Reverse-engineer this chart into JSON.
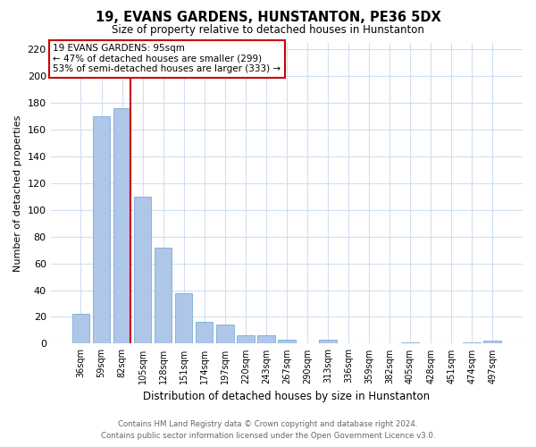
{
  "title": "19, EVANS GARDENS, HUNSTANTON, PE36 5DX",
  "subtitle": "Size of property relative to detached houses in Hunstanton",
  "xlabel": "Distribution of detached houses by size in Hunstanton",
  "ylabel": "Number of detached properties",
  "bar_labels": [
    "36sqm",
    "59sqm",
    "82sqm",
    "105sqm",
    "128sqm",
    "151sqm",
    "174sqm",
    "197sqm",
    "220sqm",
    "243sqm",
    "267sqm",
    "290sqm",
    "313sqm",
    "336sqm",
    "359sqm",
    "382sqm",
    "405sqm",
    "428sqm",
    "451sqm",
    "474sqm",
    "497sqm"
  ],
  "bar_values": [
    22,
    170,
    176,
    110,
    72,
    38,
    16,
    14,
    6,
    6,
    3,
    0,
    3,
    0,
    0,
    0,
    1,
    0,
    0,
    1,
    2
  ],
  "bar_color": "#aec6e8",
  "bar_edge_color": "#7aadd4",
  "grid_color": "#d0dff0",
  "background_color": "#ffffff",
  "ylim": [
    0,
    225
  ],
  "yticks": [
    0,
    20,
    40,
    60,
    80,
    100,
    120,
    140,
    160,
    180,
    200,
    220
  ],
  "marker_bar_index": 2,
  "marker_line_color": "#cc0000",
  "annotation_title": "19 EVANS GARDENS: 95sqm",
  "annotation_line1": "← 47% of detached houses are smaller (299)",
  "annotation_line2": "53% of semi-detached houses are larger (333) →",
  "annotation_box_color": "#ffffff",
  "annotation_box_edge": "#cc0000",
  "footer_line1": "Contains HM Land Registry data © Crown copyright and database right 2024.",
  "footer_line2": "Contains public sector information licensed under the Open Government Licence v3.0."
}
